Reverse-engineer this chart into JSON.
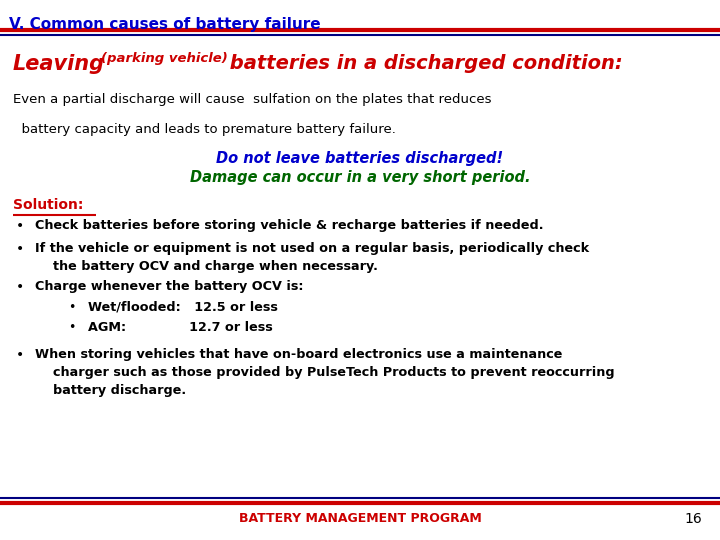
{
  "title": "V. Common causes of battery failure",
  "title_color": "#0000CC",
  "bg_color": "#FFFFFF",
  "header_line1_color": "#CC0000",
  "header_line2_color": "#000080",
  "heading_color": "#CC0000",
  "body1_line1": "Even a partial discharge will cause  sulfation on the plates that reduces",
  "body1_line2": "  battery capacity and leads to premature battery failure.",
  "body1_color": "#000000",
  "warning1": "Do not leave batteries discharged!",
  "warning1_color": "#0000CC",
  "warning2": "Damage can occur in a very short period.",
  "warning2_color": "#006600",
  "solution_label": "Solution:",
  "solution_color": "#CC0000",
  "bullets": [
    "Check batteries before storing vehicle & recharge batteries if needed.",
    "If the vehicle or equipment is not used on a regular basis, periodically check\n    the battery OCV and charge when necessary.",
    "Charge whenever the battery OCV is:",
    "When storing vehicles that have on-board electronics use a maintenance\n    charger such as those provided by PulseTech Products to prevent reoccurring\n    battery discharge."
  ],
  "sub_bullets": [
    "Wet/flooded:   12.5 or less",
    "AGM:              12.7 or less"
  ],
  "bullet_color": "#000000",
  "footer_text": "BATTERY MANAGEMENT PROGRAM",
  "footer_color": "#CC0000",
  "page_num": "16",
  "page_num_color": "#000000"
}
